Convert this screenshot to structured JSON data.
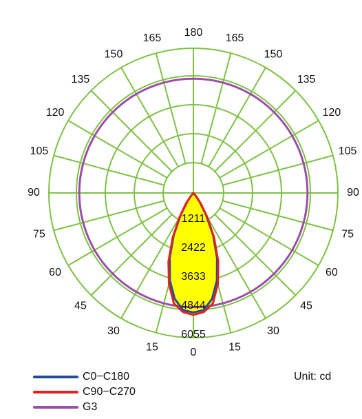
{
  "chart_data": {
    "type": "polar",
    "unit_label": "Unit: cd",
    "angle_labels": {
      "right": [
        "0",
        "15",
        "30",
        "45",
        "60",
        "75",
        "90",
        "105",
        "120",
        "135",
        "150",
        "165"
      ],
      "top": "180",
      "left": [
        "15",
        "30",
        "45",
        "60",
        "75",
        "90",
        "105",
        "120",
        "135",
        "150",
        "165"
      ]
    },
    "radial_ticks": [
      "1211",
      "2422",
      "3633",
      "4844",
      "6055"
    ],
    "r_max": 6055,
    "grid_color": "#7dc243",
    "fill_color": "#ffff00",
    "series": [
      {
        "name": "C0−C180",
        "color": "#1f4e9e",
        "points": [
          [
            0,
            5000
          ],
          [
            5,
            4920
          ],
          [
            10,
            4500
          ],
          [
            15,
            3800
          ],
          [
            20,
            2900
          ],
          [
            25,
            1950
          ],
          [
            30,
            1050
          ],
          [
            35,
            450
          ],
          [
            40,
            120
          ],
          [
            45,
            0
          ]
        ]
      },
      {
        "name": "C90−C270",
        "color": "#e3231b",
        "points": [
          [
            0,
            5100
          ],
          [
            5,
            5000
          ],
          [
            10,
            4700
          ],
          [
            15,
            3950
          ],
          [
            20,
            3050
          ],
          [
            25,
            2050
          ],
          [
            30,
            1150
          ],
          [
            35,
            550
          ],
          [
            40,
            180
          ],
          [
            45,
            0
          ]
        ]
      },
      {
        "name": "G3",
        "color": "#9b4ea6",
        "circle_value": 4780
      }
    ]
  }
}
